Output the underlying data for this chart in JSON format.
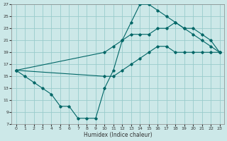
{
  "xlabel": "Humidex (Indice chaleur)",
  "xlim": [
    -0.5,
    23.5
  ],
  "ylim": [
    7,
    27
  ],
  "xticks": [
    0,
    1,
    2,
    3,
    4,
    5,
    6,
    7,
    8,
    9,
    10,
    11,
    12,
    13,
    14,
    15,
    16,
    17,
    18,
    19,
    20,
    21,
    22,
    23
  ],
  "yticks": [
    7,
    9,
    11,
    13,
    15,
    17,
    19,
    21,
    23,
    25,
    27
  ],
  "bg_color": "#cce8e8",
  "grid_color": "#99cccc",
  "line_color": "#006666",
  "line1_x": [
    0,
    1,
    2,
    3,
    4,
    5,
    6,
    7,
    8,
    9,
    10,
    11,
    12,
    13,
    14,
    15,
    16,
    17,
    18,
    19,
    20,
    21,
    22,
    23
  ],
  "line1_y": [
    16,
    15,
    14,
    13,
    12,
    10,
    10,
    8,
    8,
    8,
    13,
    16,
    21,
    24,
    27,
    27,
    26,
    25,
    24,
    23,
    22,
    21,
    20,
    19
  ],
  "line2_x": [
    0,
    10,
    11,
    12,
    13,
    14,
    15,
    16,
    17,
    18,
    19,
    20,
    21,
    22,
    23
  ],
  "line2_y": [
    16,
    19,
    20,
    21,
    22,
    22,
    22,
    23,
    23,
    24,
    23,
    23,
    22,
    21,
    19
  ],
  "line3_x": [
    0,
    10,
    11,
    12,
    13,
    14,
    15,
    16,
    17,
    18,
    19,
    20,
    21,
    22,
    23
  ],
  "line3_y": [
    16,
    15,
    15,
    16,
    17,
    18,
    19,
    20,
    20,
    19,
    19,
    19,
    19,
    19,
    19
  ]
}
